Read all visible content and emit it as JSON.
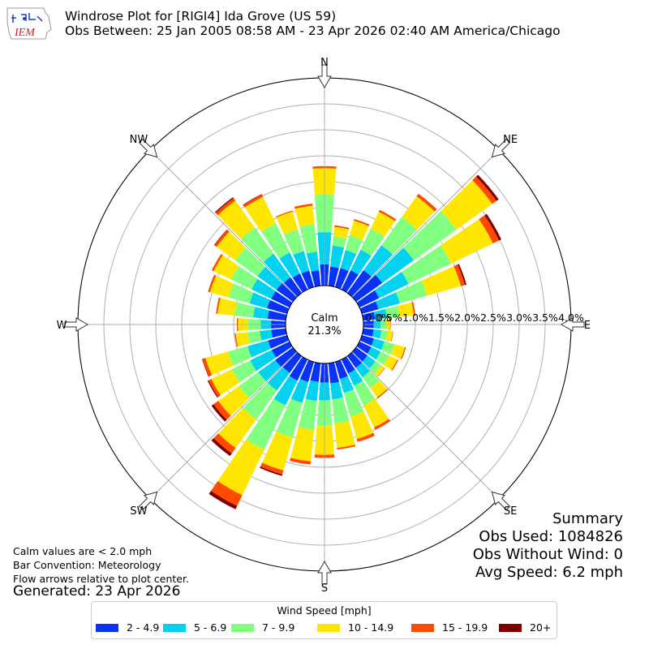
{
  "header": {
    "title_line1": "Windrose Plot for [RIGI4] Ida Grove (US 59)",
    "title_line2": "Obs Between: 25 Jan 2005 08:58 AM - 23 Apr 2026 02:40 AM America/Chicago",
    "logo_text": "IEM"
  },
  "notes": {
    "line1": "Calm values are < 2.0 mph",
    "line2": "Bar Convention: Meteorology",
    "line3": "Flow arrows relative to plot center.",
    "generated": "Generated: 23 Apr 2026"
  },
  "summary": {
    "heading": "Summary",
    "obs_used": "Obs Used: 1084826",
    "obs_without_wind": "Obs Without Wind: 0",
    "avg_speed": "Avg Speed: 6.2 mph"
  },
  "chart_data": {
    "type": "windrose",
    "calm_label": "Calm",
    "calm_value": "21.3%",
    "radial_tick_labels": [
      "0.0%",
      "0.5%",
      "1.0%",
      "1.5%",
      "2.0%",
      "2.5%",
      "3.0%",
      "3.5%",
      "4.0%"
    ],
    "radial_range": [
      0,
      4.0
    ],
    "directions": [
      "N",
      "NE",
      "E",
      "SE",
      "S",
      "SW",
      "W",
      "NW"
    ],
    "legend_title": "Wind Speed [mph]",
    "bins": [
      {
        "label": "2 - 4.9",
        "color": "#0a32f5"
      },
      {
        "label": "5 - 6.9",
        "color": "#00d2f0"
      },
      {
        "label": "7 - 9.9",
        "color": "#80ff80"
      },
      {
        "label": "10 - 14.9",
        "color": "#ffe600"
      },
      {
        "label": "15 - 19.9",
        "color": "#ff4a00"
      },
      {
        "label": "20+",
        "color": "#800000"
      }
    ],
    "sector_angles_deg": [
      0,
      10,
      20,
      30,
      40,
      50,
      60,
      70,
      80,
      90,
      100,
      110,
      120,
      130,
      140,
      150,
      160,
      170,
      180,
      190,
      200,
      210,
      220,
      230,
      240,
      250,
      260,
      270,
      280,
      290,
      300,
      310,
      320,
      330,
      340,
      350
    ],
    "sector_cumulative_pct": [
      [
        0.41,
        1.03,
        1.75,
        2.26,
        2.3,
        2.3
      ],
      [
        0.37,
        0.78,
        0.96,
        1.14,
        1.17,
        1.17
      ],
      [
        0.38,
        0.74,
        1.04,
        1.33,
        1.36,
        1.36
      ],
      [
        0.41,
        0.85,
        1.3,
        1.66,
        1.7,
        1.7
      ],
      [
        0.54,
        1.13,
        1.8,
        2.29,
        2.35,
        2.35
      ],
      [
        0.62,
        1.37,
        2.38,
        3.23,
        3.33,
        3.38
      ],
      [
        0.42,
        1.05,
        1.96,
        2.85,
        2.98,
        3.03
      ],
      [
        0.33,
        0.76,
        1.3,
        1.98,
        2.06,
        2.09
      ],
      [
        0.23,
        0.46,
        0.7,
        0.98,
        1.01,
        1.01
      ],
      [
        0.2,
        0.33,
        0.44,
        0.52,
        0.53,
        0.53
      ],
      [
        0.2,
        0.35,
        0.47,
        0.57,
        0.58,
        0.58
      ],
      [
        0.24,
        0.45,
        0.65,
        0.86,
        0.88,
        0.88
      ],
      [
        0.25,
        0.45,
        0.63,
        0.81,
        0.83,
        0.83
      ],
      [
        0.27,
        0.46,
        0.6,
        0.68,
        0.69,
        0.69
      ],
      [
        0.28,
        0.5,
        0.76,
        0.98,
        1.0,
        1.0
      ],
      [
        0.3,
        0.56,
        0.98,
        1.45,
        1.5,
        1.5
      ],
      [
        0.34,
        0.62,
        1.09,
        1.54,
        1.6,
        1.6
      ],
      [
        0.39,
        0.7,
        1.17,
        1.64,
        1.67,
        1.67
      ],
      [
        0.37,
        0.71,
        1.2,
        1.76,
        1.82,
        1.82
      ],
      [
        0.36,
        0.73,
        1.29,
        1.9,
        1.96,
        1.96
      ],
      [
        0.4,
        0.82,
        1.51,
        2.17,
        2.25,
        2.28
      ],
      [
        0.45,
        0.98,
        1.93,
        2.9,
        3.13,
        3.2
      ],
      [
        0.4,
        0.82,
        1.5,
        2.18,
        2.31,
        2.37
      ],
      [
        0.42,
        0.82,
        1.28,
        1.77,
        1.88,
        1.93
      ],
      [
        0.38,
        0.84,
        1.23,
        1.67,
        1.73,
        1.75
      ],
      [
        0.38,
        0.79,
        1.18,
        1.63,
        1.69,
        1.7
      ],
      [
        0.28,
        0.5,
        0.74,
        0.97,
        0.99,
        0.99
      ],
      [
        0.28,
        0.48,
        0.72,
        0.92,
        0.94,
        0.94
      ],
      [
        0.35,
        0.63,
        0.99,
        1.32,
        1.35,
        1.35
      ],
      [
        0.4,
        0.75,
        1.17,
        1.54,
        1.58,
        1.58
      ],
      [
        0.39,
        0.81,
        1.25,
        1.62,
        1.66,
        1.66
      ],
      [
        0.39,
        0.84,
        1.37,
        1.81,
        1.86,
        1.87
      ],
      [
        0.37,
        0.93,
        1.55,
        2.19,
        2.25,
        2.27
      ],
      [
        0.34,
        0.79,
        1.41,
        1.98,
        2.03,
        2.04
      ],
      [
        0.33,
        0.72,
        1.15,
        1.51,
        1.53,
        1.53
      ],
      [
        0.3,
        0.66,
        1.19,
        1.55,
        1.59,
        1.59
      ]
    ]
  }
}
